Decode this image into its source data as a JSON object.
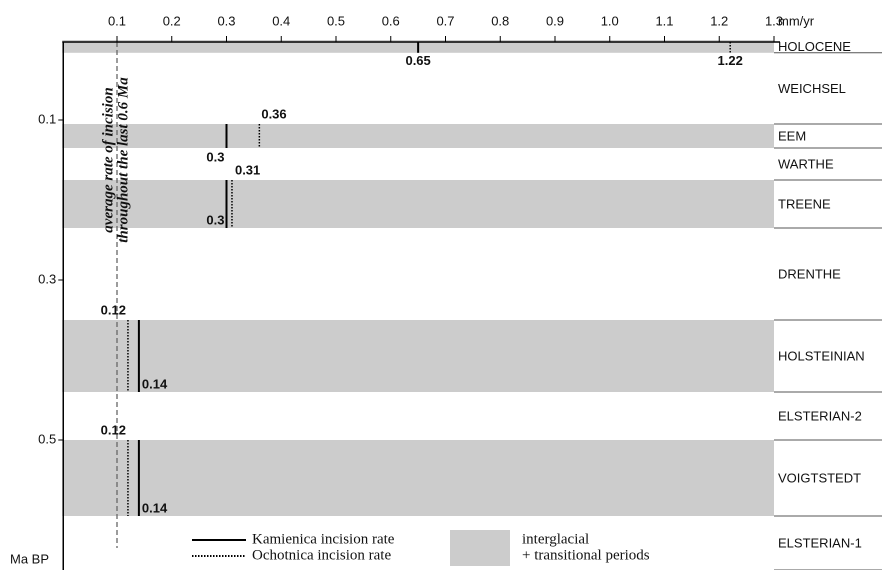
{
  "chart_data": {
    "type": "incision-rate-timeline",
    "x_label": "mm/yr",
    "y_label": "Ma BP",
    "xlim": [
      0,
      1.3
    ],
    "ylim": [
      0,
      0.6625
    ],
    "xticks": [
      0.1,
      0.2,
      0.3,
      0.4,
      0.5,
      0.6,
      0.7,
      0.8,
      0.9,
      {
        "value": 1,
        "label": "1.0"
      },
      1.1,
      1.2,
      1.3
    ],
    "yticks": [
      0.1,
      0.3,
      0.5
    ],
    "band_color": "#cccccc",
    "series": [
      {
        "name": "Kamienica incision rate",
        "style": "solid",
        "color": "#000000"
      },
      {
        "name": "Ochotnica incision rate",
        "style": "dotted",
        "color": "#000000"
      }
    ],
    "band_legend": [
      "interglacial",
      "+ transitional periods"
    ],
    "average": {
      "value": 0.1,
      "label": [
        "average rate of incision",
        "throughout the last 0.6 Ma"
      ]
    },
    "stages": [
      {
        "name": "HOLOCENE",
        "from": 0,
        "to": 0.016,
        "interglacial": true,
        "rates": [
          0.65,
          1.22
        ]
      },
      {
        "name": "WEICHSEL",
        "from": 0.016,
        "to": 0.105,
        "interglacial": false
      },
      {
        "name": "EEM",
        "from": 0.105,
        "to": 0.135,
        "interglacial": true,
        "rates": [
          0.3,
          0.36
        ]
      },
      {
        "name": "WARTHE",
        "from": 0.135,
        "to": 0.175,
        "interglacial": false
      },
      {
        "name": "TREENE",
        "from": 0.175,
        "to": 0.235,
        "interglacial": true,
        "rates": [
          0.3,
          0.31
        ]
      },
      {
        "name": "DRENTHE",
        "from": 0.235,
        "to": 0.35,
        "interglacial": false
      },
      {
        "name": "HOLSTEINIAN",
        "from": 0.35,
        "to": 0.44,
        "interglacial": true,
        "rates": [
          0.14,
          0.12
        ]
      },
      {
        "name": "ELSTERIAN-2",
        "from": 0.44,
        "to": 0.5,
        "interglacial": false
      },
      {
        "name": "VOIGTSTEDT",
        "from": 0.5,
        "to": 0.595,
        "interglacial": true,
        "rates": [
          0.14,
          0.12
        ]
      },
      {
        "name": "ELSTERIAN-1",
        "from": 0.595,
        "to": 0.6625,
        "interglacial": false
      }
    ]
  }
}
